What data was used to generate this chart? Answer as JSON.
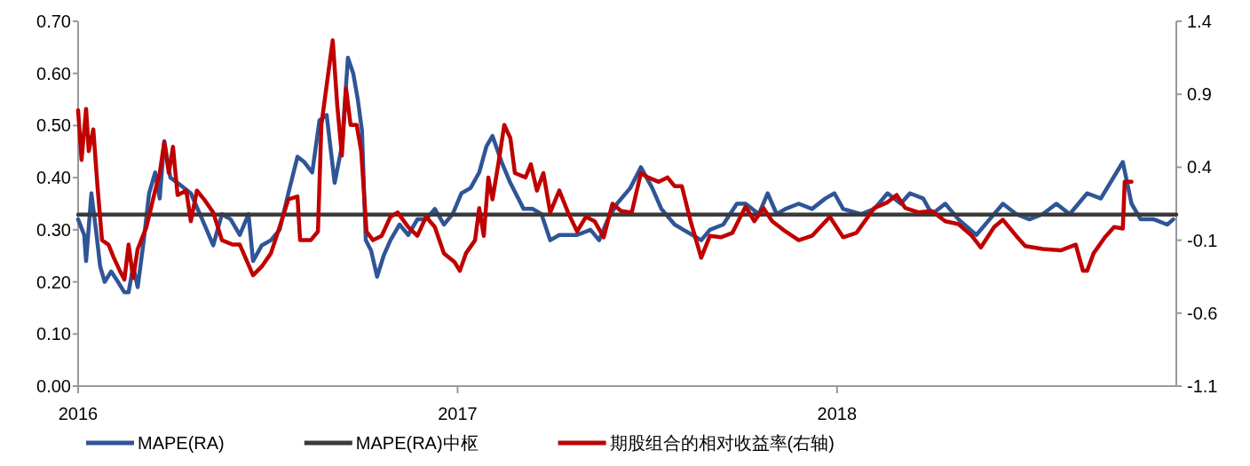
{
  "chart_data": {
    "type": "line",
    "xlim": [
      2016,
      2018.894
    ],
    "xticks": [
      2016,
      2017,
      2018
    ],
    "ylim": [
      0,
      0.7
    ],
    "yticks": [
      {
        "value": 0,
        "label": "0.00"
      },
      {
        "value": 0.1,
        "label": "0.10"
      },
      {
        "value": 0.2,
        "label": "0.20"
      },
      {
        "value": 0.3,
        "label": "0.30"
      },
      {
        "value": 0.4,
        "label": "0.40"
      },
      {
        "value": 0.5,
        "label": "0.50"
      },
      {
        "value": 0.6,
        "label": "0.60"
      },
      {
        "value": 0.7,
        "label": "0.70"
      }
    ],
    "y2lim": [
      -1.1,
      1.4
    ],
    "y2ticks": [
      -1.1,
      -0.6,
      -0.1,
      0.4,
      0.9,
      1.4
    ],
    "legend": "bottom",
    "grid": false,
    "series": [
      {
        "name": "MAPE(RA)",
        "color": "#2f5597",
        "x": [
          2016.0,
          2016.016,
          2016.021,
          2016.035,
          2016.047,
          2016.058,
          2016.07,
          2016.087,
          2016.105,
          2016.122,
          2016.133,
          2016.145,
          2016.157,
          2016.173,
          2016.187,
          2016.203,
          2016.215,
          2016.227,
          2016.243,
          2016.262,
          2016.297,
          2016.327,
          2016.356,
          2016.379,
          2016.402,
          2016.426,
          2016.449,
          2016.461,
          2016.484,
          2016.508,
          2016.531,
          2016.554,
          2016.578,
          2016.596,
          2016.617,
          2016.636,
          2016.655,
          2016.676,
          2016.695,
          2016.711,
          2016.725,
          2016.737,
          2016.748,
          2016.758,
          2016.772,
          2016.788,
          2016.805,
          2016.823,
          2016.847,
          2016.87,
          2016.894,
          2016.917,
          2016.94,
          2016.964,
          2016.987,
          2017.01,
          2017.034,
          2017.057,
          2017.076,
          2017.092,
          2017.116,
          2017.139,
          2017.174,
          2017.198,
          2017.221,
          2017.244,
          2017.268,
          2017.291,
          2017.315,
          2017.35,
          2017.373,
          2017.396,
          2017.42,
          2017.455,
          2017.483,
          2017.513,
          2017.537,
          2017.572,
          2017.595,
          2017.619,
          2017.642,
          2017.665,
          2017.7,
          2017.736,
          2017.759,
          2017.794,
          2017.817,
          2017.841,
          2017.864,
          2017.899,
          2017.934,
          2017.969,
          2017.993,
          2018.016,
          2018.063,
          2018.098,
          2018.133,
          2018.168,
          2018.192,
          2018.227,
          2018.25,
          2018.285,
          2018.32,
          2018.367,
          2018.402,
          2018.437,
          2018.472,
          2018.507,
          2018.542,
          2018.578,
          2018.613,
          2018.659,
          2018.695,
          2018.753,
          2018.776,
          2018.8,
          2018.835,
          2018.87,
          2018.886
        ],
        "values": [
          0.32,
          0.29,
          0.24,
          0.37,
          0.3,
          0.23,
          0.2,
          0.22,
          0.2,
          0.18,
          0.18,
          0.23,
          0.19,
          0.28,
          0.37,
          0.41,
          0.36,
          0.47,
          0.4,
          0.39,
          0.37,
          0.32,
          0.27,
          0.33,
          0.32,
          0.29,
          0.33,
          0.24,
          0.27,
          0.28,
          0.3,
          0.37,
          0.44,
          0.43,
          0.41,
          0.51,
          0.52,
          0.39,
          0.46,
          0.63,
          0.6,
          0.55,
          0.49,
          0.28,
          0.26,
          0.21,
          0.25,
          0.28,
          0.31,
          0.29,
          0.32,
          0.32,
          0.34,
          0.31,
          0.33,
          0.37,
          0.38,
          0.41,
          0.46,
          0.48,
          0.43,
          0.39,
          0.34,
          0.34,
          0.33,
          0.28,
          0.29,
          0.29,
          0.29,
          0.3,
          0.28,
          0.32,
          0.35,
          0.38,
          0.42,
          0.38,
          0.34,
          0.31,
          0.3,
          0.29,
          0.28,
          0.3,
          0.31,
          0.35,
          0.35,
          0.33,
          0.37,
          0.33,
          0.34,
          0.35,
          0.34,
          0.36,
          0.37,
          0.34,
          0.33,
          0.34,
          0.37,
          0.35,
          0.37,
          0.36,
          0.33,
          0.35,
          0.32,
          0.29,
          0.32,
          0.35,
          0.33,
          0.32,
          0.33,
          0.35,
          0.33,
          0.37,
          0.36,
          0.43,
          0.35,
          0.32,
          0.32,
          0.31,
          0.32
        ]
      },
      {
        "name": "MAPE(RA)中枢",
        "color": "#3a3a3a",
        "x": [
          2016,
          2018.894
        ],
        "values": [
          0.329,
          0.329
        ]
      },
      {
        "name": "期股组合的相对收益率(右轴)",
        "color": "#c00000",
        "axis": "y2",
        "x": [
          2016.0,
          2016.009,
          2016.021,
          2016.028,
          2016.04,
          2016.051,
          2016.063,
          2016.08,
          2016.094,
          2016.11,
          2016.122,
          2016.133,
          2016.145,
          2016.157,
          2016.18,
          2016.203,
          2016.215,
          2016.227,
          2016.239,
          2016.25,
          2016.262,
          2016.285,
          2016.297,
          2016.313,
          2016.332,
          2016.356,
          2016.379,
          2016.407,
          2016.426,
          2016.461,
          2016.484,
          2016.508,
          2016.531,
          2016.554,
          2016.578,
          2016.585,
          2016.613,
          2016.632,
          2016.641,
          2016.66,
          2016.671,
          2016.683,
          2016.695,
          2016.706,
          2016.718,
          2016.734,
          2016.746,
          2016.76,
          2016.777,
          2016.8,
          2016.823,
          2016.842,
          2016.87,
          2016.894,
          2016.917,
          2016.94,
          2016.964,
          2016.992,
          2017.006,
          2017.022,
          2017.046,
          2017.057,
          2017.069,
          2017.081,
          2017.092,
          2017.109,
          2017.123,
          2017.139,
          2017.151,
          2017.179,
          2017.193,
          2017.209,
          2017.226,
          2017.244,
          2017.268,
          2017.291,
          2017.315,
          2017.338,
          2017.361,
          2017.385,
          2017.408,
          2017.431,
          2017.459,
          2017.483,
          2017.502,
          2017.53,
          2017.553,
          2017.572,
          2017.591,
          2017.614,
          2017.642,
          2017.665,
          2017.694,
          2017.724,
          2017.759,
          2017.782,
          2017.806,
          2017.829,
          2017.864,
          2017.899,
          2017.934,
          2017.981,
          2018.016,
          2018.051,
          2018.098,
          2018.133,
          2018.157,
          2018.18,
          2018.215,
          2018.25,
          2018.285,
          2018.32,
          2018.355,
          2018.379,
          2018.414,
          2018.437,
          2018.472,
          2018.496,
          2018.542,
          2018.589,
          2018.629,
          2018.648,
          2018.659,
          2018.676,
          2018.706,
          2018.73,
          2018.753,
          2018.758,
          2018.776
        ],
        "values": [
          0.79,
          0.45,
          0.8,
          0.51,
          0.66,
          0.27,
          -0.1,
          -0.13,
          -0.22,
          -0.31,
          -0.37,
          -0.13,
          -0.36,
          -0.16,
          -0.01,
          0.24,
          0.36,
          0.57,
          0.36,
          0.54,
          0.21,
          0.24,
          0.03,
          0.24,
          0.18,
          0.09,
          -0.1,
          -0.13,
          -0.13,
          -0.34,
          -0.28,
          -0.19,
          -0.01,
          0.18,
          0.2,
          -0.1,
          -0.1,
          -0.04,
          0.69,
          1.06,
          1.27,
          0.82,
          0.48,
          0.94,
          0.69,
          0.69,
          0.51,
          -0.04,
          -0.1,
          -0.07,
          0.06,
          0.09,
          -0.01,
          -0.07,
          0.06,
          -0.01,
          -0.19,
          -0.25,
          -0.31,
          -0.19,
          -0.1,
          0.12,
          -0.07,
          0.33,
          0.18,
          0.45,
          0.69,
          0.6,
          0.36,
          0.33,
          0.42,
          0.24,
          0.36,
          0.09,
          0.24,
          0.09,
          -0.04,
          0.06,
          0.03,
          -0.08,
          0.15,
          0.1,
          0.09,
          0.36,
          0.33,
          0.3,
          0.33,
          0.27,
          0.27,
          0.03,
          -0.22,
          -0.07,
          -0.08,
          -0.05,
          0.13,
          0.03,
          0.12,
          0.03,
          -0.04,
          -0.1,
          -0.07,
          0.06,
          -0.08,
          -0.05,
          0.12,
          0.16,
          0.21,
          0.12,
          0.09,
          0.1,
          0.03,
          0.01,
          -0.07,
          -0.15,
          -0.01,
          0.04,
          -0.07,
          -0.14,
          -0.16,
          -0.17,
          -0.13,
          -0.31,
          -0.31,
          -0.19,
          -0.08,
          -0.01,
          -0.02,
          0.3,
          0.3
        ]
      }
    ]
  }
}
